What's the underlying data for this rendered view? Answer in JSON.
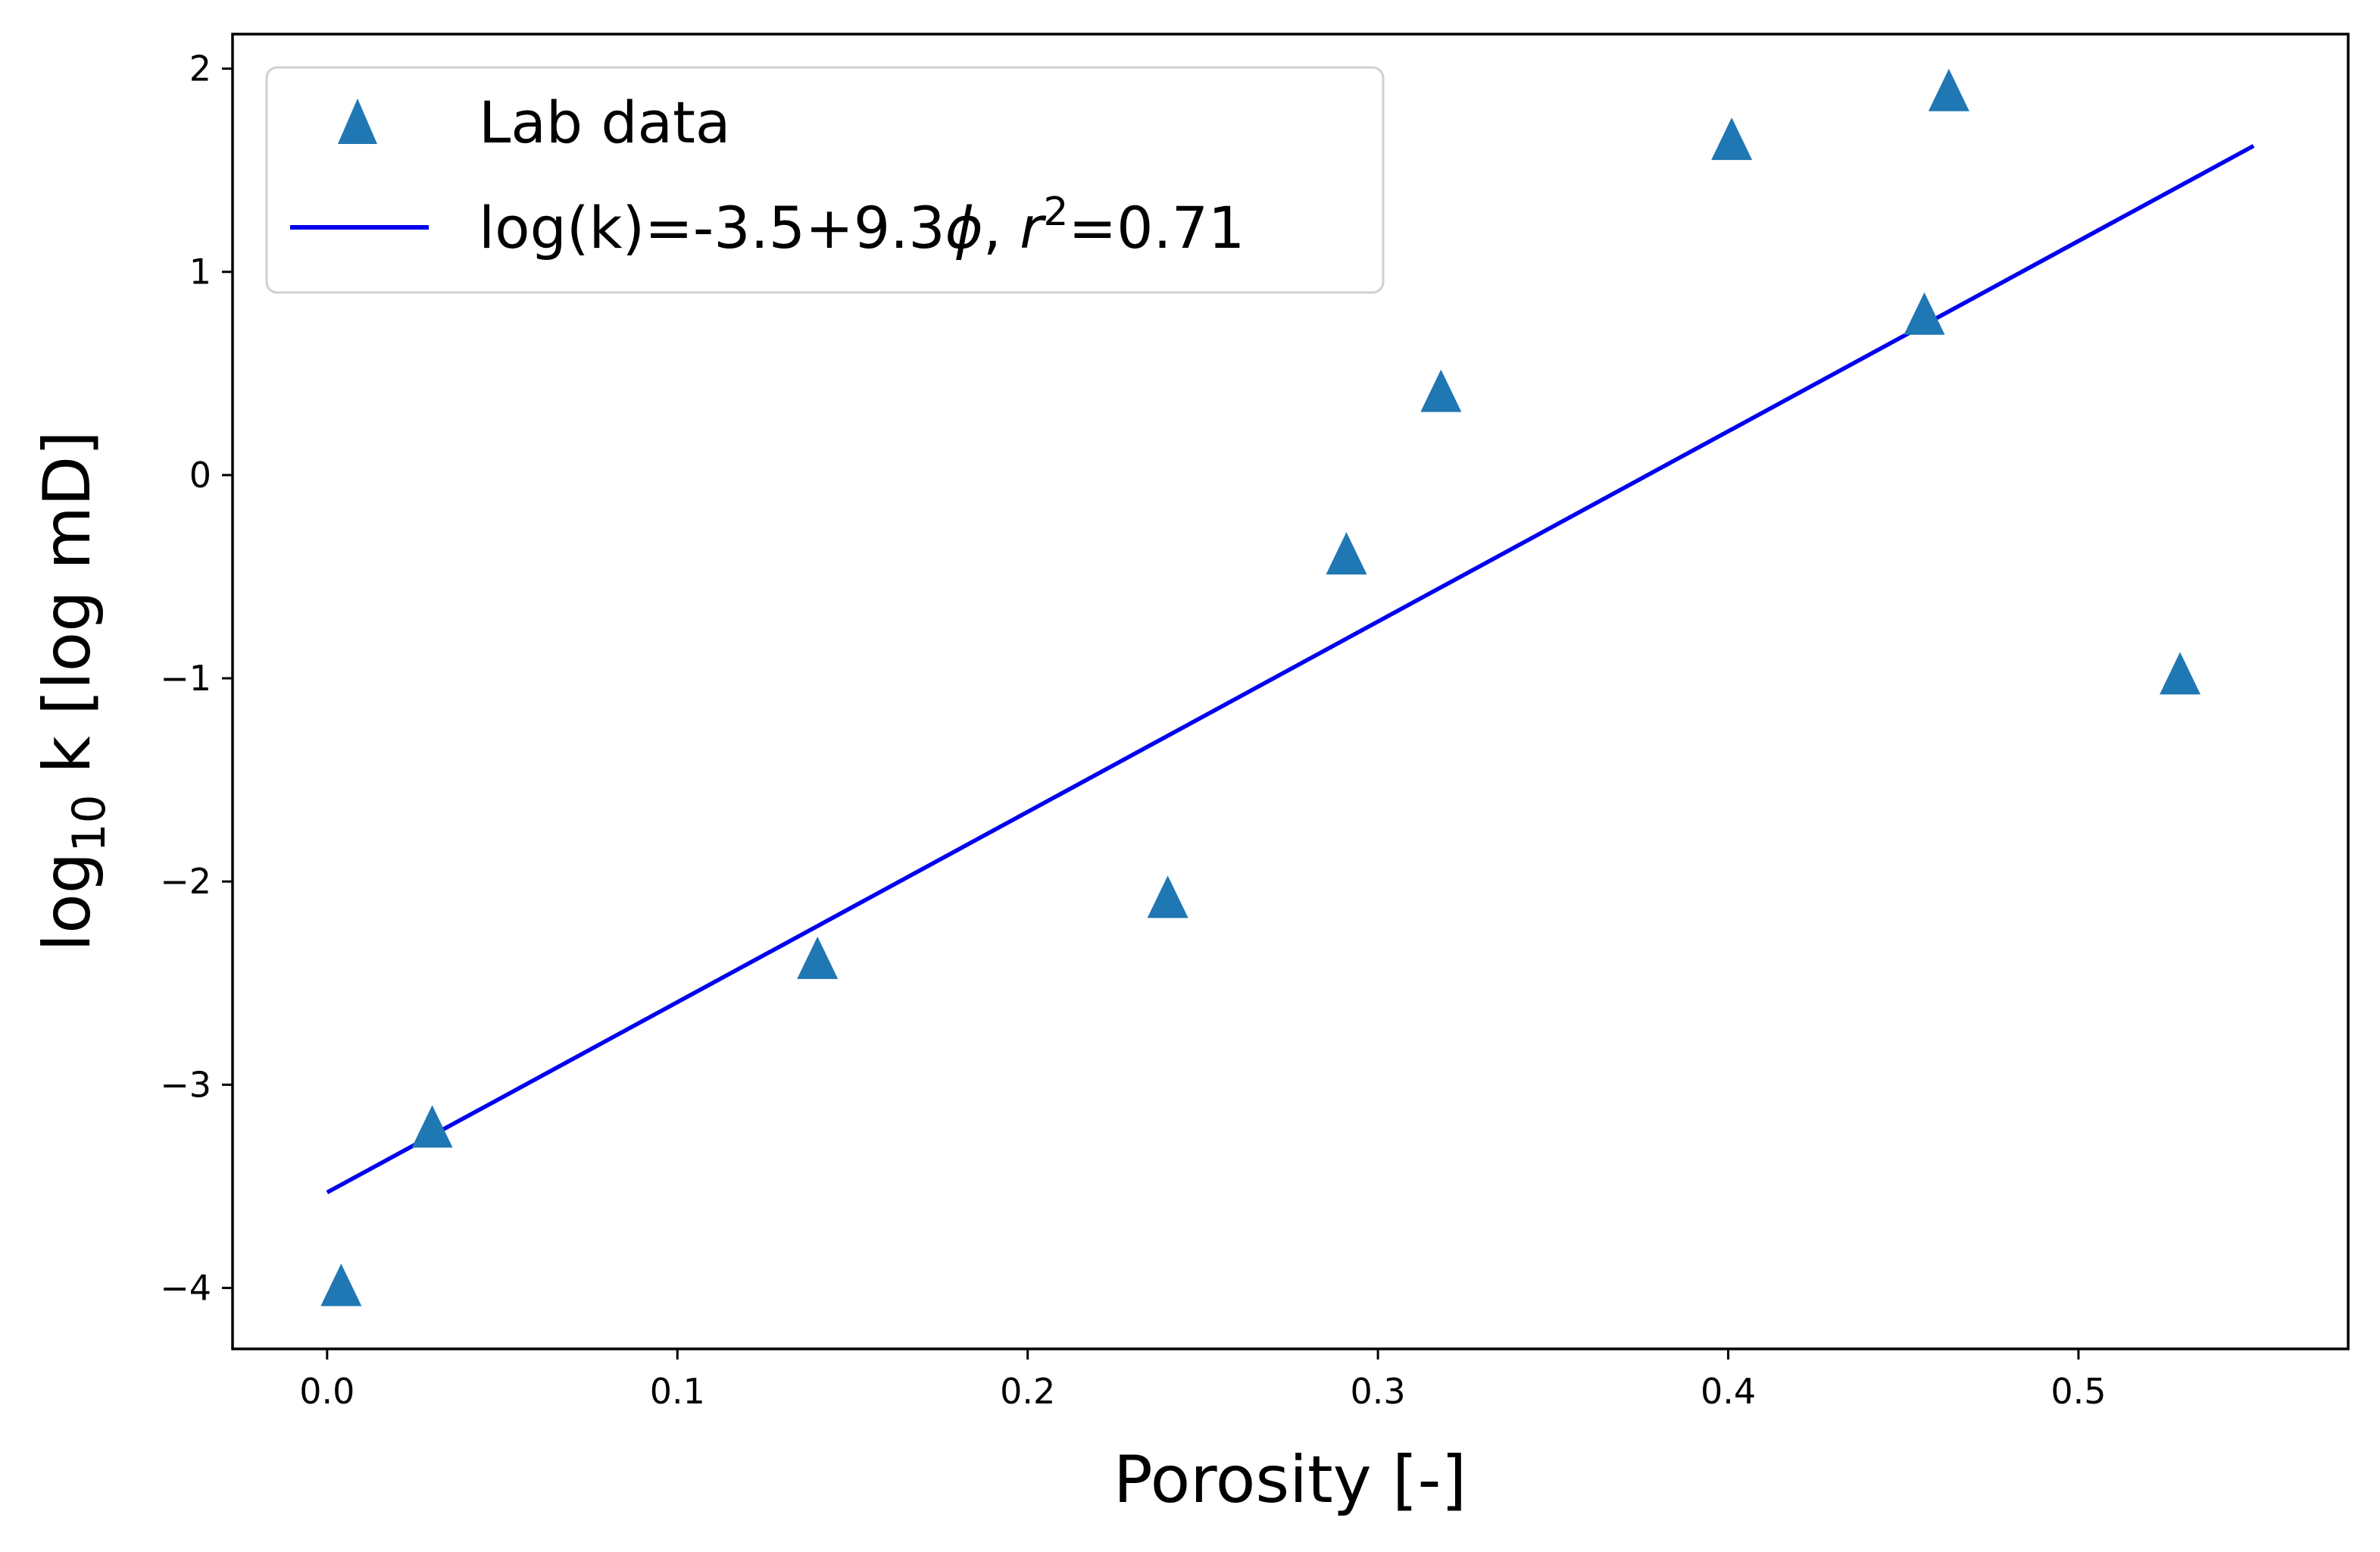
{
  "chart_data": {
    "type": "scatter",
    "xlabel": "Porosity [-]",
    "ylabel": {
      "prefix": "log",
      "subscript": "10",
      "suffix": " k [log mD]"
    },
    "xlim": [
      -0.027,
      0.577
    ],
    "ylim": [
      -4.3,
      2.17
    ],
    "xticks": [
      0.0,
      0.1,
      0.2,
      0.3,
      0.4,
      0.5
    ],
    "xtick_labels": [
      "0.0",
      "0.1",
      "0.2",
      "0.3",
      "0.4",
      "0.5"
    ],
    "yticks": [
      -4,
      -3,
      -2,
      -1,
      0,
      1,
      2
    ],
    "ytick_labels": [
      "−4",
      "−3",
      "−2",
      "−1",
      "0",
      "1",
      "2"
    ],
    "grid": false,
    "legend_position": "top-left",
    "series": [
      {
        "name": "Lab data",
        "kind": "scatter",
        "marker": "triangle",
        "color": "#1f77b4",
        "x": [
          0.004,
          0.03,
          0.14,
          0.24,
          0.291,
          0.318,
          0.401,
          0.456,
          0.463,
          0.529
        ],
        "y": [
          -4.0,
          -3.22,
          -2.39,
          -2.09,
          -0.4,
          0.4,
          1.64,
          0.78,
          1.88,
          -0.99
        ]
      },
      {
        "name_parts": {
          "pre": "log(k)=-3.5+9.3",
          "phi": "ϕ",
          "mid": ", ",
          "r": "r",
          "sup": "2",
          "post": "=0.71"
        },
        "kind": "line",
        "color": "#0000ee",
        "x": [
          0.0,
          0.55
        ],
        "y": [
          -3.53,
          1.62
        ]
      }
    ]
  }
}
